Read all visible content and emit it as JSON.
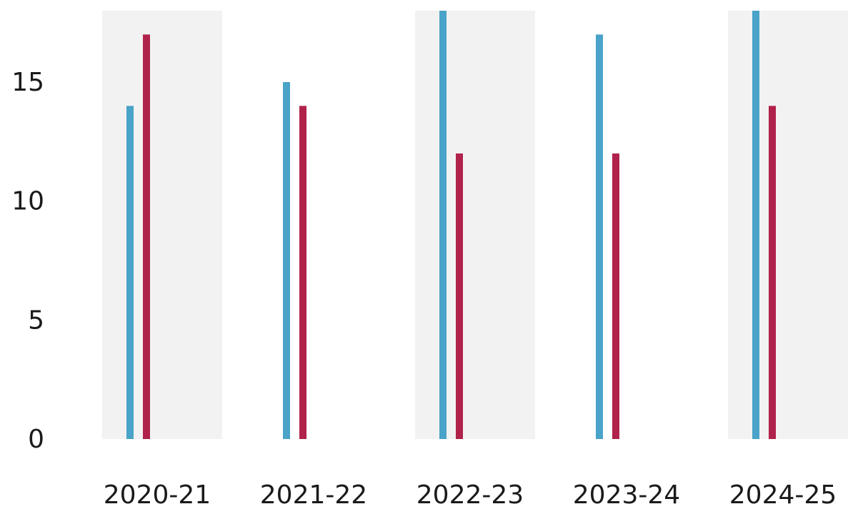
{
  "chart_data": {
    "type": "bar",
    "title": "",
    "xlabel": "",
    "ylabel": "",
    "categories": [
      "2020-21",
      "2021-22",
      "2022-23",
      "2023-24",
      "2024-25"
    ],
    "series": [
      {
        "color": "#4aa3c8",
        "values": [
          14,
          15,
          18,
          17,
          18
        ]
      },
      {
        "color": "#b0224a",
        "values": [
          17,
          14,
          12,
          12,
          14
        ]
      }
    ],
    "ylim": [
      0,
      18
    ],
    "yticks": [
      0,
      5,
      10,
      15
    ],
    "y_tick_labels": [
      "0",
      "5",
      "10",
      "15"
    ],
    "grid": false,
    "legend": "none",
    "band_color": "#f2f2f2",
    "alternating_bands": true
  }
}
